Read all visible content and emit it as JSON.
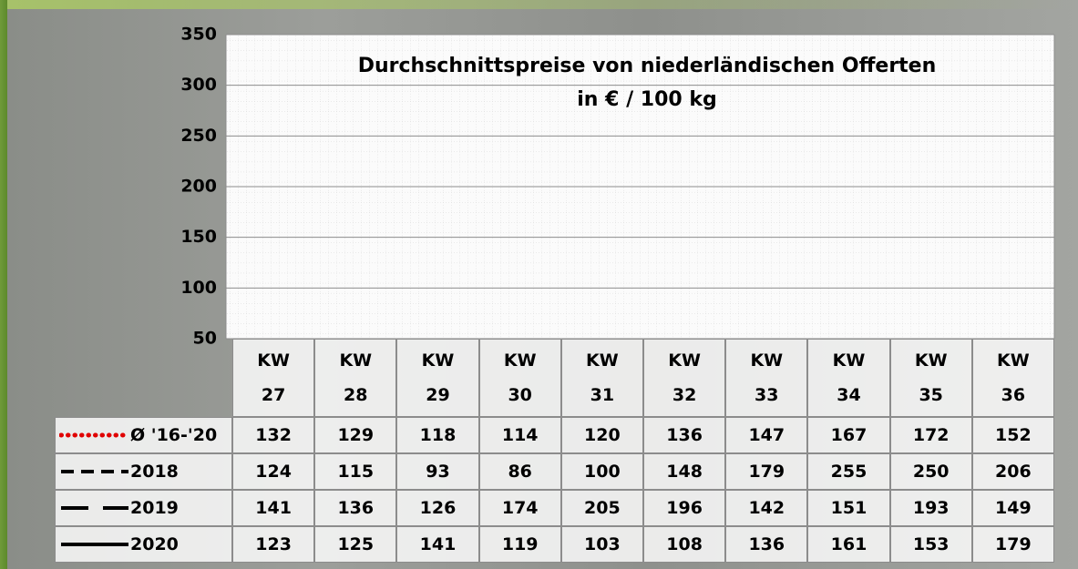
{
  "chart_data": {
    "type": "line",
    "title": "Durchschnittspreise von niederländischen Offerten",
    "subtitle": "in € / 100 kg",
    "categories": [
      "KW 27",
      "KW 28",
      "KW 29",
      "KW 30",
      "KW 31",
      "KW 32",
      "KW 33",
      "KW 34",
      "KW 35",
      "KW 36"
    ],
    "series": [
      {
        "name": "Ø '16-'20",
        "color": "#e00000",
        "style": "dotted",
        "values": [
          132,
          129,
          118,
          114,
          120,
          136,
          147,
          167,
          172,
          152
        ]
      },
      {
        "name": "2018",
        "color": "#000000",
        "style": "dashed",
        "values": [
          124,
          115,
          93,
          86,
          100,
          148,
          179,
          255,
          250,
          206
        ]
      },
      {
        "name": "2019",
        "color": "#000000",
        "style": "longdash",
        "values": [
          141,
          136,
          126,
          174,
          205,
          196,
          142,
          151,
          193,
          149
        ]
      },
      {
        "name": "2020",
        "color": "#000000",
        "style": "solid",
        "values": [
          123,
          125,
          141,
          119,
          103,
          108,
          136,
          161,
          153,
          179
        ]
      }
    ],
    "ylim": [
      50,
      350
    ],
    "yticks": [
      50,
      100,
      150,
      200,
      250,
      300,
      350
    ],
    "grid": true
  }
}
